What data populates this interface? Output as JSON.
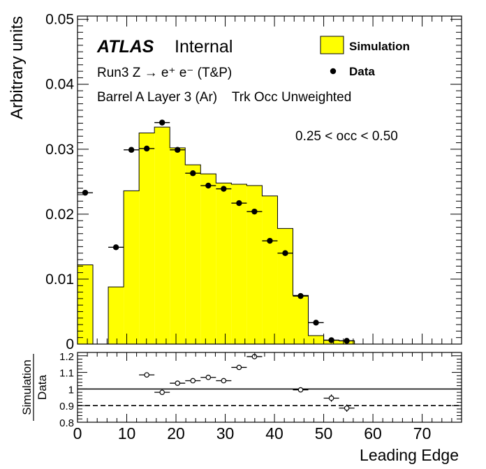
{
  "chart_data": [
    {
      "type": "histogram",
      "panel": "main",
      "ylabel": "Arbitrary units",
      "xlim": [
        0,
        78
      ],
      "ylim": [
        0,
        0.0505
      ],
      "yticks": [
        "0",
        "0.01",
        "0.02",
        "0.03",
        "0.04",
        "0.05"
      ],
      "atlas_label": "ATLAS",
      "atlas_status": "Internal",
      "annotations": [
        "Run3 Z → e⁺ e⁻ (T&P)",
        "Barrel A Layer 3 (Ar)    Trk Occ Unweighted",
        "0.25 < occ < 0.50"
      ],
      "legend": {
        "position": "top-right",
        "entries": [
          "Simulation",
          "Data"
        ]
      },
      "bin_width": 3.125,
      "series": [
        {
          "name": "Simulation",
          "kind": "filled-histogram",
          "color": "#ffff00",
          "bin_lows": [
            0,
            3.125,
            6.25,
            9.375,
            12.5,
            15.625,
            18.75,
            21.875,
            25,
            28.125,
            31.25,
            34.375,
            37.5,
            40.625,
            43.75,
            46.875,
            50,
            53.125
          ],
          "values": [
            0.0122,
            0.0,
            0.0088,
            0.0236,
            0.0325,
            0.0334,
            0.0302,
            0.0276,
            0.0262,
            0.0248,
            0.0246,
            0.0244,
            0.0228,
            0.0178,
            0.0075,
            0.0013,
            0.0006,
            0.0005
          ]
        },
        {
          "name": "Data",
          "kind": "points-with-xerr",
          "color": "#000000",
          "x": [
            1.5625,
            7.8125,
            10.9375,
            14.0625,
            17.1875,
            20.3125,
            23.4375,
            26.5625,
            29.6875,
            32.8125,
            35.9375,
            39.0625,
            42.1875,
            45.3125,
            48.4375,
            51.5625,
            54.6875
          ],
          "y": [
            0.0233,
            0.0149,
            0.0299,
            0.0301,
            0.0341,
            0.0299,
            0.0263,
            0.0244,
            0.0239,
            0.0217,
            0.0204,
            0.0159,
            0.014,
            0.0074,
            0.0033,
            0.0006,
            0.0005
          ]
        }
      ]
    },
    {
      "type": "scatter",
      "panel": "ratio",
      "ylabel_top": "Simulation",
      "ylabel_bottom": "Data",
      "xlabel": "Leading Edge",
      "xlim": [
        0,
        78
      ],
      "ylim": [
        0.8,
        1.22
      ],
      "yticks": [
        "0.8",
        "0.9",
        "1",
        "1.1",
        "1.2"
      ],
      "xticks": [
        "0",
        "10",
        "20",
        "30",
        "40",
        "50",
        "60",
        "70"
      ],
      "reference_lines": [
        {
          "y": 1.0,
          "style": "solid"
        },
        {
          "y": 0.9,
          "style": "dashed"
        }
      ],
      "series": [
        {
          "name": "Simulation/Data",
          "kind": "open-points",
          "x": [
            14.0625,
            17.1875,
            20.3125,
            23.4375,
            26.5625,
            29.6875,
            32.8125,
            35.9375,
            45.3125,
            51.5625,
            54.6875
          ],
          "y": [
            1.085,
            0.98,
            1.035,
            1.05,
            1.07,
            1.05,
            1.13,
            1.195,
            0.995,
            0.945,
            0.885
          ],
          "yerr": [
            0.004,
            0.004,
            0.004,
            0.004,
            0.004,
            0.004,
            0.004,
            0.004,
            0.006,
            0.022,
            0.022
          ]
        }
      ]
    }
  ]
}
